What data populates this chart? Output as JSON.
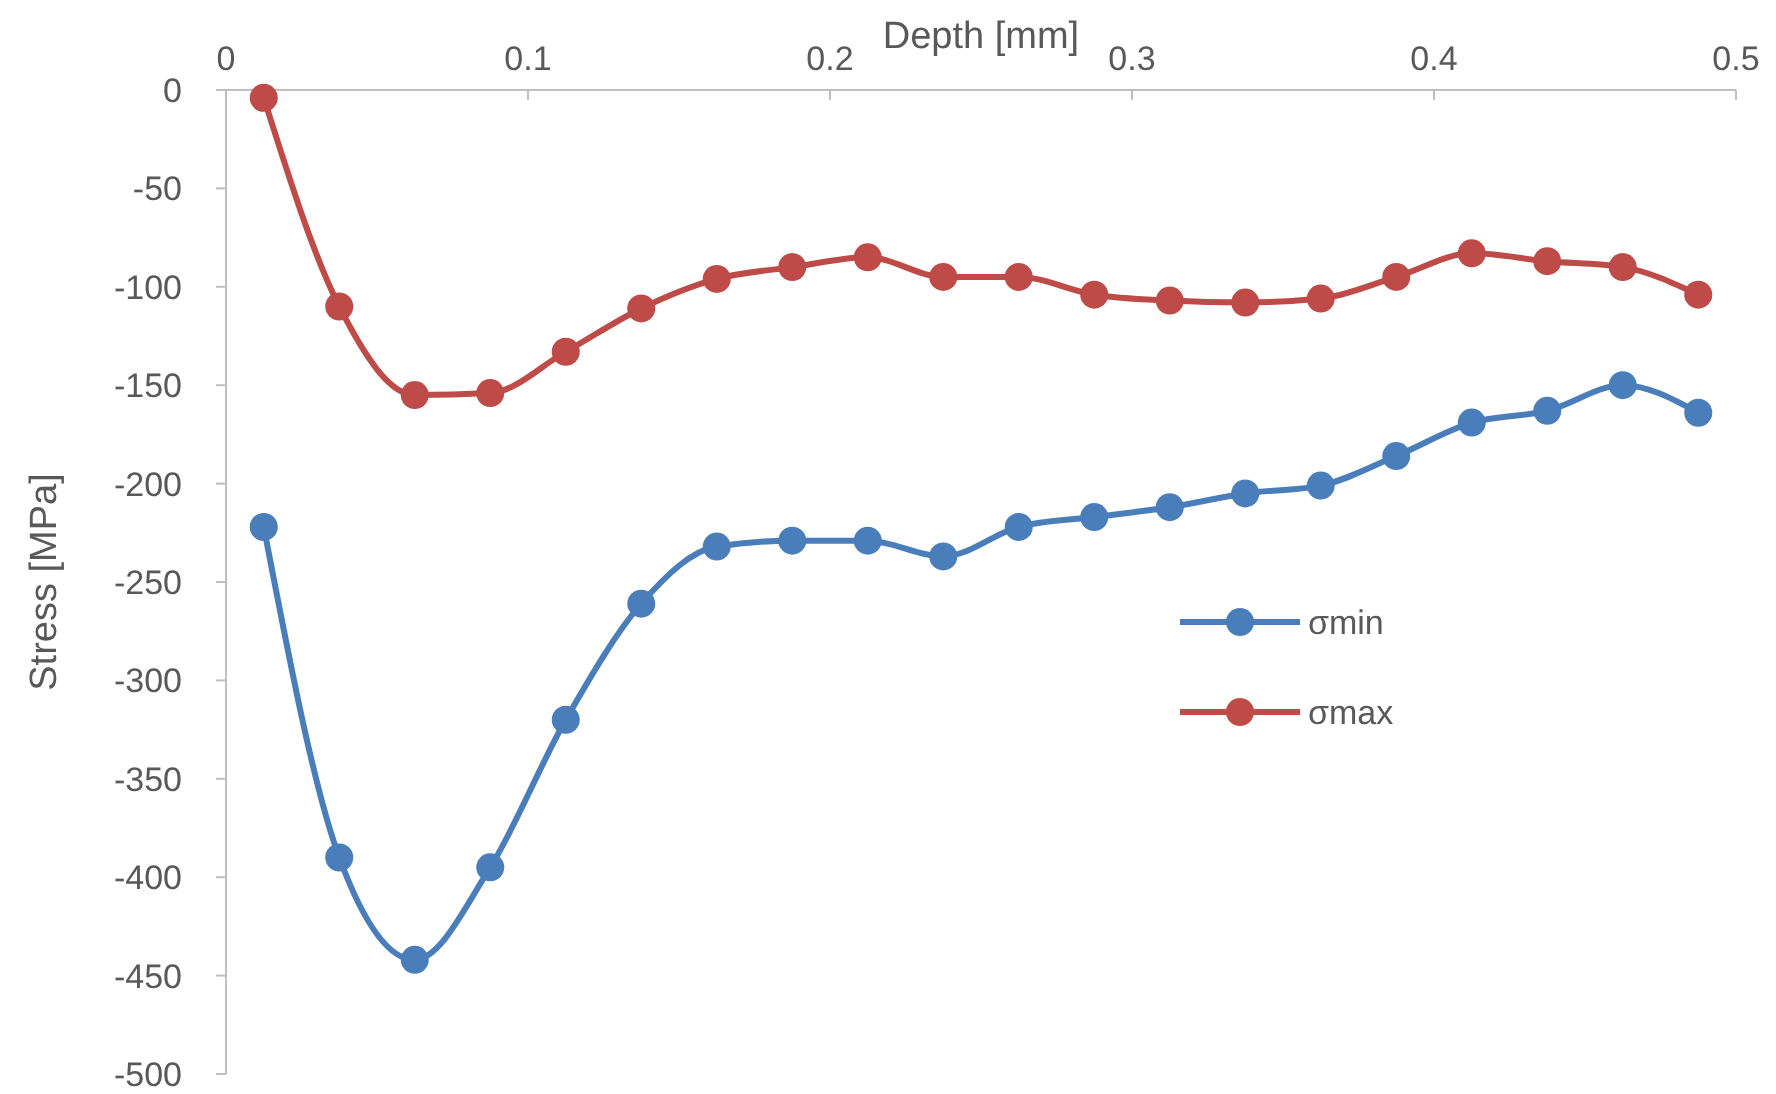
{
  "chart_data": {
    "type": "line",
    "xlabel": "Depth [mm]",
    "ylabel": "Stress [MPa]",
    "x": [
      0.0125,
      0.0375,
      0.0625,
      0.0875,
      0.1125,
      0.1375,
      0.1625,
      0.1875,
      0.2125,
      0.2375,
      0.2625,
      0.2875,
      0.3125,
      0.3375,
      0.3625,
      0.3875,
      0.4125,
      0.4375,
      0.4625,
      0.4875
    ],
    "series": [
      {
        "name": "σmin",
        "color": "#4a7ebb",
        "values": [
          -222,
          -390,
          -442,
          -395,
          -320,
          -261,
          -232,
          -229,
          -229,
          -237,
          -222,
          -217,
          -212,
          -205,
          -201,
          -186,
          -169,
          -163,
          -150,
          -164
        ]
      },
      {
        "name": "σmax",
        "color": "#be4b48",
        "values": [
          -4,
          -110,
          -155,
          -154,
          -133,
          -111,
          -96,
          -90,
          -85,
          -95,
          -95,
          -104,
          -107,
          -108,
          -106,
          -95,
          -83,
          -87,
          -90,
          -104
        ]
      }
    ],
    "xlim": [
      0,
      0.5
    ],
    "xticks": [
      0,
      0.1,
      0.2,
      0.3,
      0.4,
      0.5
    ],
    "ylim": [
      -500,
      0
    ],
    "yticks": [
      -500,
      -450,
      -400,
      -350,
      -300,
      -250,
      -200,
      -150,
      -100,
      -50,
      0
    ],
    "grid": false,
    "legend": "right",
    "marker": "circle",
    "line_style": "solid"
  }
}
